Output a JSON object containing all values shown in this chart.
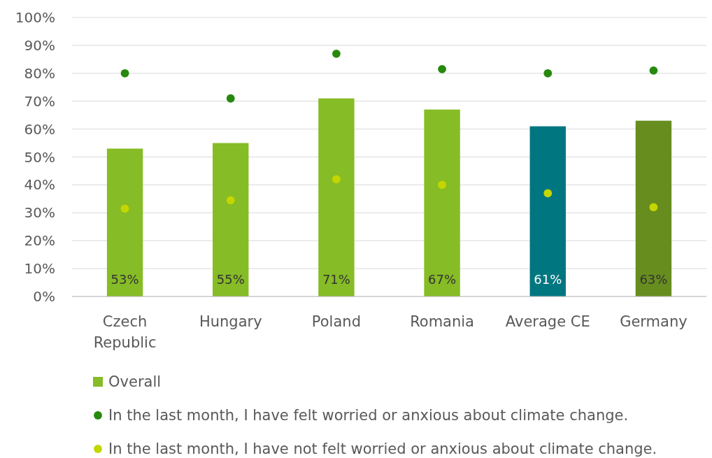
{
  "chart_data": {
    "type": "bar",
    "categories": [
      "Czech\nRepublic",
      "Hungary",
      "Poland",
      "Romania",
      "Average CE",
      "Germany"
    ],
    "series": [
      {
        "name": "Overall",
        "color": "#86bc25",
        "colors": [
          "#86bc25",
          "#86bc25",
          "#86bc25",
          "#86bc25",
          "#007680",
          "#678d1f"
        ],
        "values": [
          53,
          55,
          71,
          67,
          61,
          63
        ],
        "value_labels": [
          "53%",
          "55%",
          "71%",
          "67%",
          "61%",
          "63%"
        ]
      },
      {
        "name": "In the last month, I have felt worried or anxious about climate change.",
        "type": "scatter",
        "color": "#26890d",
        "x": [
          "Czech\nRepublic",
          "Hungary",
          "Poland",
          "Romania",
          "Average CE",
          "Germany"
        ],
        "values": [
          80,
          71,
          87,
          81.5,
          80,
          81
        ]
      },
      {
        "name": "In the last month, I have not felt worried or anxious about climate change.",
        "type": "scatter",
        "color": "#c4d600",
        "x": [
          "Czech\nRepublic",
          "Hungary",
          "Poland",
          "Romania",
          "Average CE",
          "Germany"
        ],
        "values": [
          31.5,
          34.5,
          42,
          40,
          37,
          32
        ]
      }
    ],
    "ylim": [
      0,
      100
    ],
    "yticks": [
      {
        "value": 0,
        "label": "0%"
      },
      {
        "value": 10,
        "label": "10%"
      },
      {
        "value": 20,
        "label": "20%"
      },
      {
        "value": 30,
        "label": "30%"
      },
      {
        "value": 40,
        "label": "40%"
      },
      {
        "value": 50,
        "label": "50%"
      },
      {
        "value": 60,
        "label": "60%"
      },
      {
        "value": 70,
        "label": "70%"
      },
      {
        "value": 80,
        "label": "80%"
      },
      {
        "value": 90,
        "label": "90%"
      },
      {
        "value": 100,
        "label": "100%"
      }
    ],
    "grid": "y",
    "legend": "bottom",
    "marker": "circle"
  }
}
